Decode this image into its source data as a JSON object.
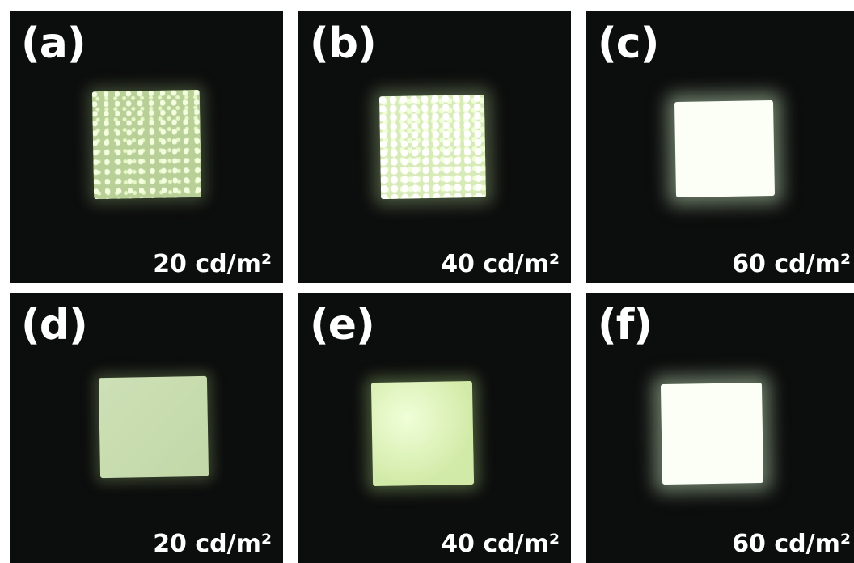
{
  "panels": [
    {
      "label": "(a)",
      "caption": "20 cd/m²"
    },
    {
      "label": "(b)",
      "caption": "40 cd/m²"
    },
    {
      "label": "(c)",
      "caption": "60 cd/m²"
    },
    {
      "label": "(d)",
      "caption": "20 cd/m²"
    },
    {
      "label": "(e)",
      "caption": "40 cd/m²"
    },
    {
      "label": "(f)",
      "caption": "60 cd/m²"
    }
  ]
}
